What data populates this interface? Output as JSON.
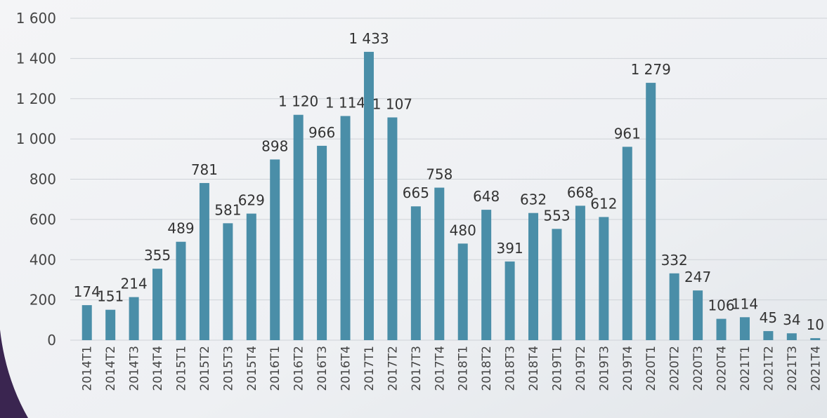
{
  "chart_data": {
    "type": "bar",
    "categories": [
      "2014T1",
      "2014T2",
      "2014T3",
      "2014T4",
      "2015T1",
      "2015T2",
      "2015T3",
      "2015T4",
      "2016T1",
      "2016T2",
      "2016T3",
      "2016T4",
      "2017T1",
      "2017T2",
      "2017T3",
      "2017T4",
      "2018T1",
      "2018T2",
      "2018T3",
      "2018T4",
      "2019T1",
      "2019T2",
      "2019T3",
      "2019T4",
      "2020T1",
      "2020T2",
      "2020T3",
      "2020T4",
      "2021T1",
      "2021T2",
      "2021T3",
      "2021T4"
    ],
    "values": [
      174,
      151,
      214,
      355,
      489,
      781,
      581,
      629,
      898,
      1120,
      966,
      1114,
      1433,
      1107,
      665,
      758,
      480,
      648,
      391,
      632,
      553,
      668,
      612,
      961,
      1279,
      332,
      247,
      106,
      114,
      45,
      34,
      10
    ],
    "value_labels": [
      "174",
      "151",
      "214",
      "355",
      "489",
      "781",
      "581",
      "629",
      "898",
      "1 120",
      "966",
      "1 114",
      "1 433",
      "1 107",
      "665",
      "758",
      "480",
      "648",
      "391",
      "632",
      "553",
      "668",
      "612",
      "961",
      "1 279",
      "332",
      "247",
      "106",
      "114",
      "45",
      "34",
      "10"
    ],
    "color": "#4a8ea8",
    "ylim": [
      0,
      1600
    ],
    "yticks": [
      0,
      200,
      400,
      600,
      800,
      {
        "value": 1000,
        "label": "1 000"
      },
      {
        "value": 1200,
        "label": "1 200"
      },
      {
        "value": 1400,
        "label": "1 400"
      },
      {
        "value": 1600,
        "label": "1 600"
      }
    ],
    "grid": true
  }
}
